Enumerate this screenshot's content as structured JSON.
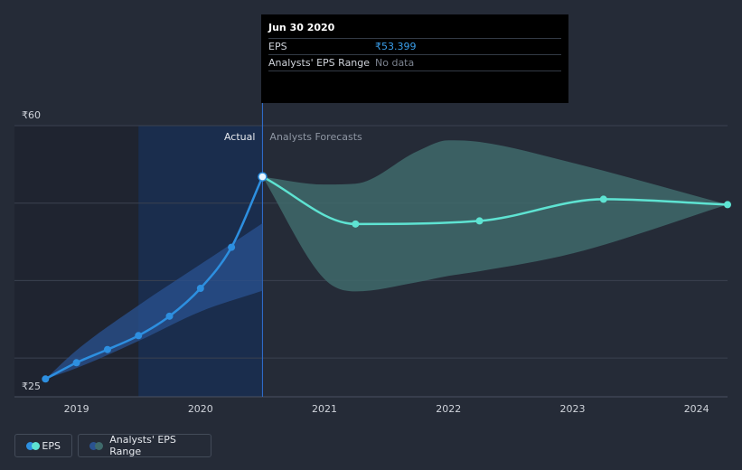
{
  "chart_data": {
    "type": "line",
    "y_axis": {
      "ticks": [
        {
          "label": "₹60",
          "value": 60
        },
        {
          "label": "₹25",
          "value": 25
        }
      ],
      "ylim": [
        25,
        60
      ]
    },
    "x_axis": {
      "tick_labels": [
        "2019",
        "2020",
        "2021",
        "2022",
        "2023",
        "2024"
      ],
      "xlim": [
        2018.5,
        2024.25
      ]
    },
    "region_labels": {
      "actual": "Actual",
      "forecast": "Analysts Forecasts"
    },
    "series": [
      {
        "name": "EPS",
        "kind": "actual",
        "points": [
          {
            "x": 2018.75,
            "y": 27.3
          },
          {
            "x": 2019.0,
            "y": 29.4
          },
          {
            "x": 2019.25,
            "y": 31.1
          },
          {
            "x": 2019.5,
            "y": 32.9
          },
          {
            "x": 2019.75,
            "y": 35.4
          },
          {
            "x": 2020.0,
            "y": 39.0
          },
          {
            "x": 2020.25,
            "y": 44.3
          },
          {
            "x": 2020.5,
            "y": 53.4
          }
        ]
      },
      {
        "name": "EPS",
        "kind": "forecast",
        "points": [
          {
            "x": 2020.5,
            "y": 53.4
          },
          {
            "x": 2021.25,
            "y": 47.3
          },
          {
            "x": 2022.25,
            "y": 47.7
          },
          {
            "x": 2023.25,
            "y": 50.5
          },
          {
            "x": 2024.25,
            "y": 49.8
          }
        ]
      }
    ],
    "past_range": {
      "x": [
        2018.75,
        2019.0,
        2019.5,
        2020.0,
        2020.5
      ],
      "high": [
        27.3,
        31.0,
        36.8,
        42.1,
        47.4
      ],
      "low": [
        27.3,
        28.7,
        32.2,
        36.0,
        38.7
      ]
    },
    "forecast_range": {
      "x": [
        2020.5,
        2021.0,
        2021.25,
        2021.75,
        2022.0,
        2022.25,
        2023.0,
        2024.25
      ],
      "high": [
        53.4,
        52.4,
        52.5,
        56.7,
        58.1,
        57.9,
        55.2,
        49.8
      ],
      "low": [
        53.4,
        40.2,
        38.6,
        39.8,
        40.6,
        41.2,
        43.5,
        49.8
      ]
    },
    "tooltip": {
      "title": "Jun 30 2020",
      "rows": [
        {
          "label": "EPS",
          "value": "₹53.399"
        },
        {
          "label": "Analysts' EPS Range",
          "value": "No data"
        }
      ]
    },
    "legend": [
      {
        "label": "EPS"
      },
      {
        "label": "Analysts' EPS Range"
      }
    ],
    "colors": {
      "eps_actual": "#2d8fe0",
      "eps_forecast": "#5ee3d2",
      "range_forecast": "#3f6a6b",
      "range_past": "#2a5290",
      "grid": "#3b4250"
    }
  }
}
